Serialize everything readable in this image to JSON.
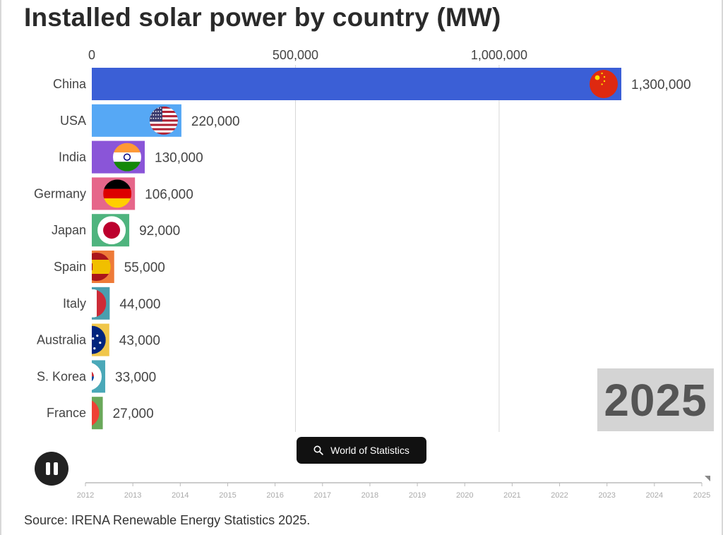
{
  "title": "Installed solar power by country (MW)",
  "year": "2025",
  "search_pill": {
    "label": "World of Statistics",
    "icon": "search-icon"
  },
  "source": "Source: IRENA Renewable Energy Statistics 2025.",
  "timeline": {
    "years": [
      "2012",
      "2013",
      "2014",
      "2015",
      "2016",
      "2017",
      "2018",
      "2019",
      "2020",
      "2021",
      "2022",
      "2023",
      "2024",
      "2025"
    ],
    "progress": 1.0
  },
  "chart_data": {
    "type": "bar",
    "orientation": "horizontal",
    "title": "Installed solar power by country (MW)",
    "xlim": [
      0,
      1300000
    ],
    "x_ticks": [
      0,
      500000,
      1000000
    ],
    "x_tick_labels": [
      "0",
      "500,000",
      "1,000,000"
    ],
    "grid": true,
    "categories": [
      "China",
      "USA",
      "India",
      "Germany",
      "Japan",
      "Spain",
      "Italy",
      "Australia",
      "S. Korea",
      "France"
    ],
    "values": [
      1300000,
      220000,
      130000,
      106000,
      92000,
      55000,
      44000,
      43000,
      33000,
      27000
    ],
    "value_labels": [
      "1,300,000",
      "220,000",
      "130,000",
      "106,000",
      "92,000",
      "55,000",
      "44,000",
      "43,000",
      "33,000",
      "27,000"
    ],
    "colors": [
      "#3b5fd6",
      "#56a8f5",
      "#8a55d8",
      "#e6668a",
      "#4fb47e",
      "#ee7a38",
      "#4a9eae",
      "#f0c64a",
      "#4aa8b8",
      "#6aa85a"
    ],
    "flags": [
      "china",
      "usa",
      "india",
      "germany",
      "japan",
      "spain",
      "italy",
      "australia",
      "south-korea",
      "france"
    ]
  }
}
